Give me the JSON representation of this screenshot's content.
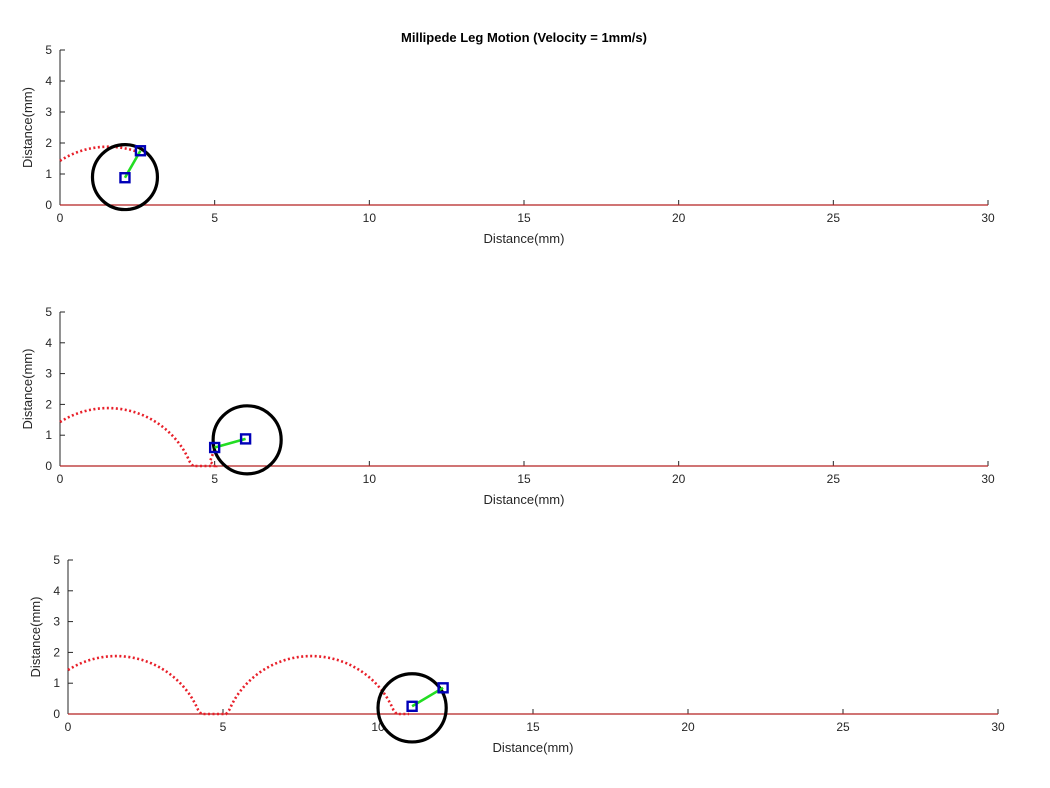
{
  "figure": {
    "title": "Millipede Leg Motion (Velocity = 1mm/s)"
  },
  "chart_data": [
    {
      "type": "line",
      "title": "Millipede Leg Motion (Velocity = 1mm/s)",
      "xlabel": "Distance(mm)",
      "ylabel": "Distance(mm)",
      "xlim": [
        0,
        30
      ],
      "ylim": [
        0,
        5
      ],
      "xticks": [
        0,
        5,
        10,
        15,
        20,
        25,
        30
      ],
      "yticks": [
        0,
        1,
        2,
        3,
        4,
        5
      ],
      "grid": false,
      "ground_y": 0,
      "trajectory": {
        "color": "#e8202a",
        "style": "dotted",
        "x": [
          0,
          1.5,
          2.5
        ],
        "y": [
          1.6,
          1.9,
          1.8
        ]
      },
      "wheel": {
        "cx": 2.1,
        "cy": 0.9,
        "r": 1.05,
        "color": "#000000"
      },
      "leg": {
        "x": [
          2.1,
          2.6
        ],
        "y": [
          0.88,
          1.75
        ],
        "color": "#22dd22",
        "marker_color": "#0000b8"
      }
    },
    {
      "type": "line",
      "title": "",
      "xlabel": "Distance(mm)",
      "ylabel": "Distance(mm)",
      "xlim": [
        0,
        30
      ],
      "ylim": [
        0,
        5
      ],
      "xticks": [
        0,
        5,
        10,
        15,
        20,
        25,
        30
      ],
      "yticks": [
        0,
        1,
        2,
        3,
        4,
        5
      ],
      "grid": false,
      "ground_y": 0,
      "trajectory": {
        "color": "#e8202a",
        "style": "dotted",
        "x": [
          0,
          1.55,
          4.7,
          5.0
        ],
        "y": [
          1.6,
          1.88,
          0.0,
          0.55
        ]
      },
      "wheel": {
        "cx": 6.05,
        "cy": 0.85,
        "r": 1.1,
        "color": "#000000"
      },
      "leg": {
        "x": [
          5.0,
          6.0
        ],
        "y": [
          0.6,
          0.88
        ],
        "color": "#22dd22",
        "marker_color": "#0000b8"
      }
    },
    {
      "type": "line",
      "title": "",
      "xlabel": "Distance(mm)",
      "ylabel": "Distance(mm)",
      "xlim": [
        0,
        30
      ],
      "ylim": [
        0,
        5
      ],
      "xticks": [
        0,
        5,
        10,
        15,
        20,
        25,
        30
      ],
      "yticks": [
        0,
        1,
        2,
        3,
        4,
        5
      ],
      "grid": false,
      "ground_y": 0,
      "trajectory": {
        "color": "#e8202a",
        "style": "dotted",
        "x": [
          0,
          1.55,
          4.7,
          7.85,
          11.0
        ],
        "y": [
          1.6,
          1.88,
          0.0,
          1.88,
          0.2
        ]
      },
      "wheel": {
        "cx": 11.1,
        "cy": 0.2,
        "r": 1.1,
        "color": "#000000"
      },
      "leg": {
        "x": [
          11.1,
          12.1
        ],
        "y": [
          0.25,
          0.85
        ],
        "color": "#22dd22",
        "marker_color": "#0000b8"
      }
    }
  ]
}
